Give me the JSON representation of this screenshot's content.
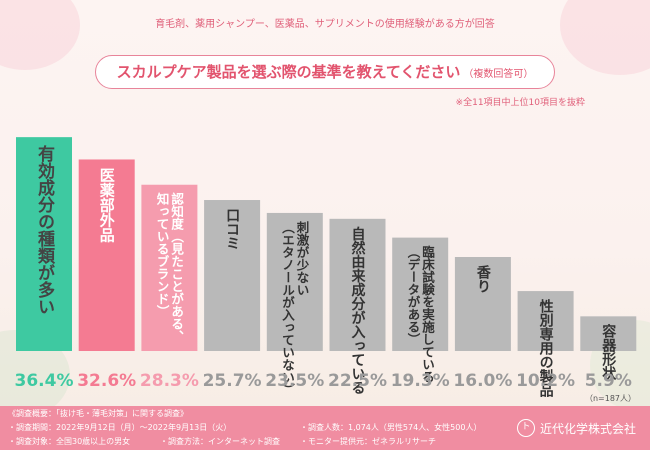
{
  "header": {
    "target_note": "育毛剤、薬用シャンプー、医薬品、サプリメントの使用経験がある方が回答",
    "question": "スカルプケア製品を選ぶ際の基準を教えてください",
    "question_suffix": "（複数回答可）",
    "selection_note": "※全11項目中上位10項目を抜粋"
  },
  "chart_data": {
    "type": "bar",
    "categories": [
      "有効成分の種類が多い",
      "医薬部外品",
      "認知度（見たことがある、知っているブランド）",
      "口コミ",
      "刺激が少ない（エタノールが入っていない）",
      "自然由来成分が入っている",
      "臨床試験を実施している（データがある）",
      "香り",
      "性別専用の製品",
      "容器形状"
    ],
    "values": [
      36.4,
      32.6,
      28.3,
      25.7,
      23.5,
      22.5,
      19.3,
      16.0,
      10.2,
      5.9
    ],
    "value_labels": [
      "36.4%",
      "32.6%",
      "28.3%",
      "25.7%",
      "23.5%",
      "22.5%",
      "19.3%",
      "16.0%",
      "10.2%",
      "5.9%"
    ],
    "ylim": [
      0,
      40
    ],
    "colors": [
      "#3ec9a1",
      "#f47b92",
      "#f59cae",
      "#b9b9b9",
      "#b9b9b9",
      "#b9b9b9",
      "#b9b9b9",
      "#b9b9b9",
      "#b9b9b9",
      "#b9b9b9"
    ],
    "label_colors": [
      "#3ec9a1",
      "#f47b92",
      "#f59cae",
      "#9a9a9a",
      "#9a9a9a",
      "#9a9a9a",
      "#9a9a9a",
      "#9a9a9a",
      "#9a9a9a",
      "#9a9a9a"
    ],
    "bar_text_lines": [
      [
        {
          "t": "有効成分の種類が多い",
          "c": "#444444"
        }
      ],
      [
        {
          "t": "医薬部外品",
          "c": "#ffffff"
        }
      ],
      [
        {
          "t": "認知度（見たことがある、",
          "c": "#ffffff"
        },
        {
          "t": "知っているブランド）",
          "c": "#ffffff"
        }
      ],
      [
        {
          "t": "口コミ",
          "c": "#333333"
        }
      ],
      [
        {
          "t": "刺激が少ない",
          "c": "#333333"
        },
        {
          "t": "（エタノールが入っていない）",
          "c": "#333333"
        }
      ],
      [
        {
          "t": "自然由来成分が入っている",
          "c": "#333333"
        }
      ],
      [
        {
          "t": "臨床試験を実施している",
          "c": "#333333"
        },
        {
          "t": "（データがある）",
          "c": "#333333"
        }
      ],
      [
        {
          "t": "香り",
          "c": "#333333"
        }
      ],
      [
        {
          "t": "性別専用の製品",
          "c": "#333333"
        }
      ],
      [
        {
          "t": "容器形状",
          "c": "#333333"
        }
      ]
    ],
    "n_note": "（n=187人）"
  },
  "footer": {
    "survey_title": "《調査概要：「抜け毛・薄毛対策」に関する調査》",
    "period": "・調査期間：2022年9月12日（月）〜2022年9月13日（火）",
    "target": "・調査対象：全国30歳以上の男女",
    "method": "・調査方法：インターネット調査",
    "count": "・調査人数：1,074人（男性574人、女性500人）",
    "provider": "・モニター提供元：ゼネラルリサーチ",
    "company": "近代化学株式会社",
    "logo_text": "ト"
  },
  "colors": {
    "accent_pink": "#e2546e",
    "accent_green": "#3ec9a1",
    "footer_bg": "#f08da1"
  }
}
